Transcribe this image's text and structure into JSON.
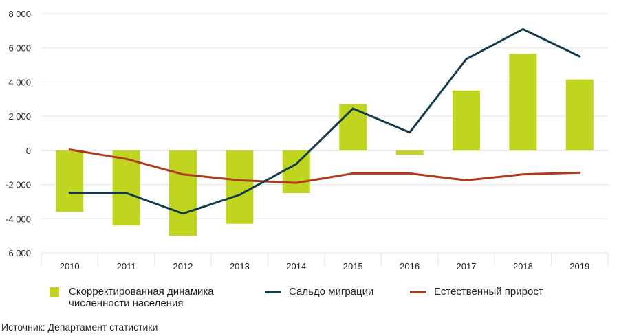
{
  "chart_data": {
    "type": "bar+line",
    "categories": [
      "2010",
      "2011",
      "2012",
      "2013",
      "2014",
      "2015",
      "2016",
      "2017",
      "2018",
      "2019"
    ],
    "series": [
      {
        "name": "Скорректированная динамика численности населения",
        "kind": "bar",
        "color": "#bfd520",
        "values": [
          -3600,
          -4400,
          -5000,
          -4300,
          -2500,
          2700,
          -250,
          3500,
          5650,
          4150
        ]
      },
      {
        "name": "Сальдо миграции",
        "kind": "line",
        "color": "#123c4e",
        "values": [
          -2500,
          -2500,
          -3700,
          -2600,
          -800,
          2450,
          1050,
          5350,
          7100,
          5500
        ]
      },
      {
        "name": "Естественный прирост",
        "kind": "line",
        "color": "#b03a1e",
        "values": [
          50,
          -500,
          -1400,
          -1750,
          -1900,
          -1350,
          -1350,
          -1750,
          -1400,
          -1300
        ]
      }
    ],
    "yticks": [
      -6000,
      -4000,
      -2000,
      0,
      2000,
      4000,
      6000,
      8000
    ],
    "ytick_labels": [
      "-6 000",
      "-4 000",
      "-2 000",
      "0",
      "2 000",
      "4 000",
      "6 000",
      "8 000"
    ],
    "ylim": [
      -6000,
      8000
    ],
    "grid": true,
    "legend_position": "bottom"
  },
  "legend": {
    "bars_line1": "Скорректированная динамика",
    "bars_line2": "численности населения",
    "migration": "Сальдо миграции",
    "natural": "Естественный прирост"
  },
  "source": "Источник: Департамент статистики"
}
